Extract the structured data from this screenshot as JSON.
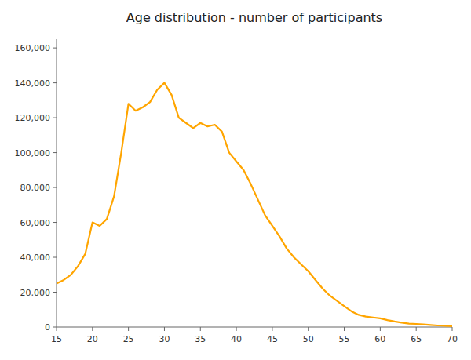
{
  "chart_data": {
    "type": "line",
    "title": "Age distribution - number of participants",
    "x": [
      15,
      16,
      17,
      18,
      19,
      20,
      21,
      22,
      23,
      24,
      25,
      26,
      27,
      28,
      29,
      30,
      31,
      32,
      33,
      34,
      35,
      36,
      37,
      38,
      39,
      40,
      41,
      42,
      43,
      44,
      45,
      46,
      47,
      48,
      49,
      50,
      51,
      52,
      53,
      54,
      55,
      56,
      57,
      58,
      59,
      60,
      61,
      62,
      63,
      64,
      65,
      66,
      67,
      68,
      69,
      70
    ],
    "values": [
      25000,
      27000,
      30000,
      35000,
      42000,
      60000,
      58000,
      62000,
      75000,
      100000,
      128000,
      124000,
      126000,
      129000,
      136000,
      140000,
      133000,
      120000,
      117000,
      114000,
      117000,
      115000,
      116000,
      112000,
      100000,
      95000,
      90000,
      82000,
      73000,
      64000,
      58000,
      52000,
      45000,
      40000,
      36000,
      32000,
      27000,
      22000,
      18000,
      15000,
      12000,
      9000,
      7000,
      6000,
      5500,
      5000,
      4000,
      3200,
      2500,
      2000,
      1800,
      1500,
      1200,
      900,
      700,
      500
    ],
    "color": "#FFA500",
    "xlim": [
      15,
      70
    ],
    "ylim": [
      0,
      165000
    ],
    "xticks": [
      15,
      20,
      25,
      30,
      35,
      40,
      45,
      50,
      55,
      60,
      65,
      70
    ],
    "yticks": [
      0,
      {
        "value": 20000,
        "label": "20,000"
      },
      {
        "value": 40000,
        "label": "40,000"
      },
      {
        "value": 60000,
        "label": "60,000"
      },
      {
        "value": 80000,
        "label": "80,000"
      },
      {
        "value": 100000,
        "label": "100,000"
      },
      {
        "value": 120000,
        "label": "120,000"
      },
      {
        "value": 140000,
        "label": "140,000"
      },
      {
        "value": 160000,
        "label": "160,000"
      }
    ],
    "grid": false
  }
}
